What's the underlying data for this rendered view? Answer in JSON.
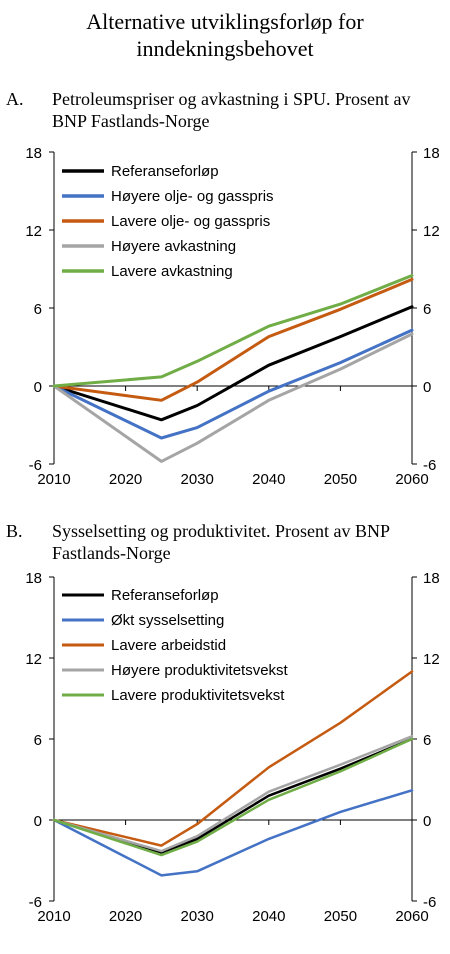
{
  "title": "Alternative utviklingsforløp for inndekningsbehovet",
  "colors": {
    "black": "#000000",
    "blue": "#4472c4",
    "orange": "#c55a11",
    "gray": "#a5a5a5",
    "green": "#70ad47"
  },
  "chart_data": [
    {
      "type": "line",
      "panel_letter": "A.",
      "title": "Petroleumspriser og avkastning i SPU. Prosent av BNP Fastlands-Norge",
      "x": [
        2010,
        2025,
        2030,
        2040,
        2050,
        2060
      ],
      "xticks": [
        "2010",
        "2020",
        "2030",
        "2040",
        "2050",
        "2060"
      ],
      "xlim": [
        2010,
        2060
      ],
      "yticks": [
        "-6",
        "0",
        "6",
        "12",
        "18"
      ],
      "ylim": [
        -6,
        18
      ],
      "secondary_axis": true,
      "legend_position": "top-left",
      "line_width": 3,
      "series": [
        {
          "name": "Referanseforløp",
          "color": "#000000",
          "values": [
            0,
            -2.6,
            -1.5,
            1.6,
            3.8,
            6.1
          ]
        },
        {
          "name": "Høyere olje- og gasspris",
          "color": "#4472c4",
          "values": [
            0,
            -4.0,
            -3.2,
            -0.4,
            1.8,
            4.3
          ]
        },
        {
          "name": "Lavere olje- og gasspris",
          "color": "#c55a11",
          "values": [
            0,
            -1.1,
            0.3,
            3.8,
            5.9,
            8.2
          ]
        },
        {
          "name": "Høyere avkastning",
          "color": "#a5a5a5",
          "values": [
            0,
            -5.8,
            -4.4,
            -1.1,
            1.3,
            4.0
          ]
        },
        {
          "name": "Lavere avkastning",
          "color": "#70ad47",
          "values": [
            0,
            0.7,
            1.9,
            4.6,
            6.3,
            8.5
          ]
        }
      ]
    },
    {
      "type": "line",
      "panel_letter": "B.",
      "title": "Sysselsetting og produktivitet. Prosent av BNP Fastlands-Norge",
      "x": [
        2010,
        2025,
        2030,
        2040,
        2050,
        2060
      ],
      "xticks": [
        "2010",
        "2020",
        "2030",
        "2040",
        "2050",
        "2060"
      ],
      "xlim": [
        2010,
        2060
      ],
      "yticks": [
        "-6",
        "0",
        "6",
        "12",
        "18"
      ],
      "ylim": [
        -6,
        18
      ],
      "secondary_axis": true,
      "legend_position": "top-left",
      "line_width": 2.5,
      "series": [
        {
          "name": "Referanseforløp",
          "color": "#000000",
          "values": [
            0,
            -2.4,
            -1.4,
            1.8,
            3.8,
            6.0
          ]
        },
        {
          "name": "Økt sysselsetting",
          "color": "#4472c4",
          "values": [
            0,
            -4.1,
            -3.8,
            -1.4,
            0.6,
            2.2
          ]
        },
        {
          "name": "Lavere arbeidstid",
          "color": "#c55a11",
          "values": [
            0,
            -1.9,
            -0.3,
            3.9,
            7.2,
            11.0
          ]
        },
        {
          "name": "Høyere produktivitetsvekst",
          "color": "#a5a5a5",
          "values": [
            0,
            -2.3,
            -1.2,
            2.1,
            4.1,
            6.2
          ]
        },
        {
          "name": "Lavere produktivitetsvekst",
          "color": "#70ad47",
          "values": [
            0,
            -2.6,
            -1.6,
            1.5,
            3.6,
            6.0
          ]
        }
      ]
    }
  ]
}
